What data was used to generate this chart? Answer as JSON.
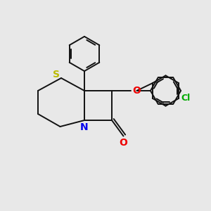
{
  "bg_color": "#e8e8e8",
  "atom_colors": {
    "S": "#bbbb00",
    "N": "#0000ee",
    "O": "#ee0000",
    "Cl": "#00aa00",
    "C": "#111111"
  },
  "lw": 1.4
}
